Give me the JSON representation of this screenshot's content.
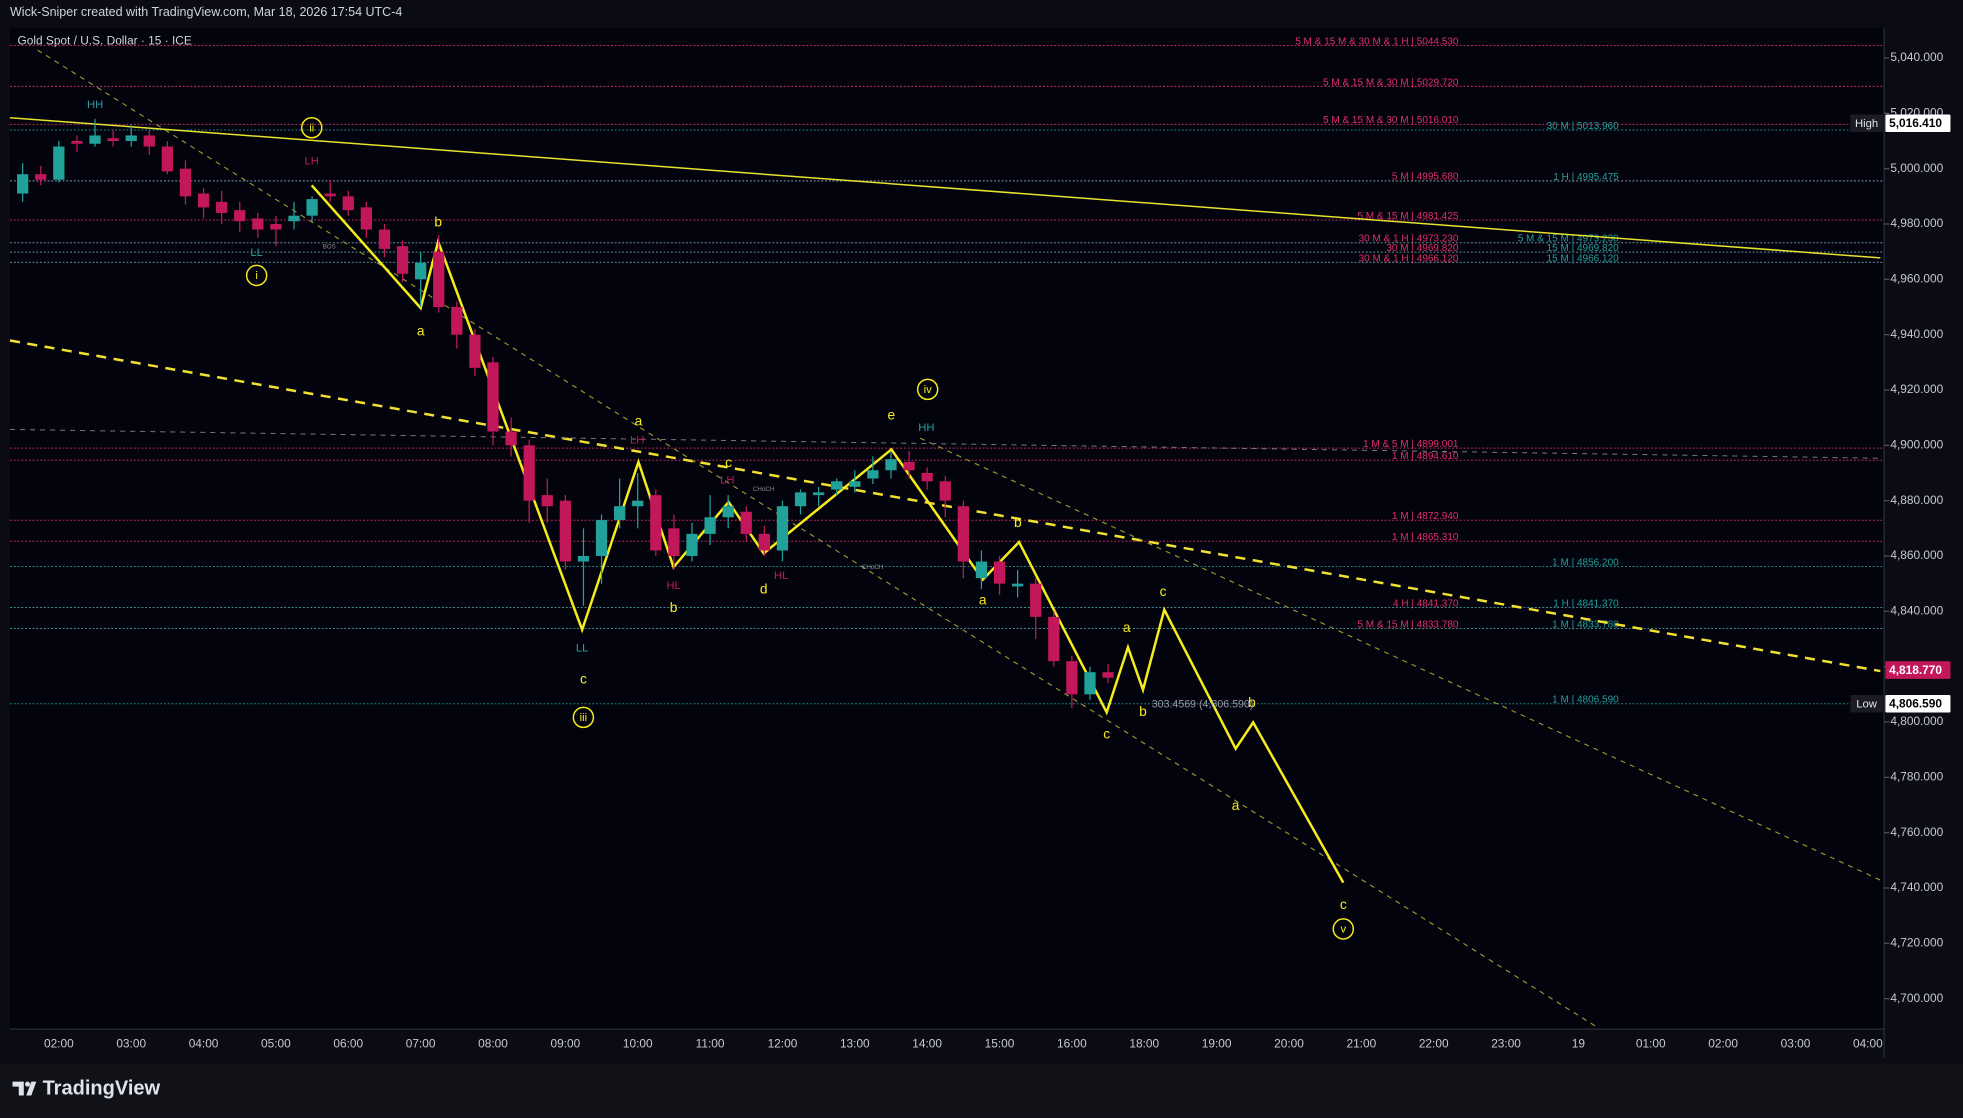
{
  "header": "Wick-Sniper created with TradingView.com, Mar 18, 2026 17:54 UTC-4",
  "footer": "TradingView",
  "chart_data": {
    "type": "candlestick",
    "title": "Gold Spot / U.S. Dollar · 15 · ICE",
    "up_color": "#22a09a",
    "down_color": "#c2185b",
    "ylim": [
      4689,
      5051
    ],
    "yticks": [
      {
        "value": 5040,
        "label": "5,040.000"
      },
      {
        "value": 5020,
        "label": "5,020.000"
      },
      {
        "value": 5000,
        "label": "5,000.000"
      },
      {
        "value": 4980,
        "label": "4,980.000"
      },
      {
        "value": 4960,
        "label": "4,960.000"
      },
      {
        "value": 4940,
        "label": "4,940.000"
      },
      {
        "value": 4920,
        "label": "4,920.000"
      },
      {
        "value": 4900,
        "label": "4,900.000"
      },
      {
        "value": 4880,
        "label": "4,880.000"
      },
      {
        "value": 4860,
        "label": "4,860.000"
      },
      {
        "value": 4840,
        "label": "4,840.000"
      },
      {
        "value": 4820,
        "label": "4,820.000"
      },
      {
        "value": 4800,
        "label": "4,800.000"
      },
      {
        "value": 4780,
        "label": "4,780.000"
      },
      {
        "value": 4760,
        "label": "4,760.000"
      },
      {
        "value": 4740,
        "label": "4,740.000"
      },
      {
        "value": 4720,
        "label": "4,720.000"
      },
      {
        "value": 4700,
        "label": "4,700.000"
      }
    ],
    "categories": [
      "02:00",
      "03:00",
      "04:00",
      "05:00",
      "06:00",
      "07:00",
      "08:00",
      "09:00",
      "10:00",
      "11:00",
      "12:00",
      "13:00",
      "14:00",
      "15:00",
      "16:00",
      "18:00",
      "19:00",
      "20:00",
      "21:00",
      "22:00",
      "23:00",
      "19",
      "01:00",
      "02:00",
      "03:00",
      "04:00"
    ],
    "open": [
      4991,
      4998,
      4996,
      5010,
      5009,
      5011,
      5010,
      5012,
      5008,
      5000,
      4991,
      4988,
      4985,
      4982,
      4980,
      4981,
      4983,
      4991,
      4990,
      4986,
      4978,
      4972,
      4960,
      4970,
      4950,
      4940,
      4930,
      4905,
      4900,
      4882,
      4880,
      4858,
      4860,
      4873,
      4878,
      4882,
      4870,
      4860,
      4868,
      4874,
      4876,
      4868,
      4862,
      4878,
      4882,
      4884,
      4885,
      4888,
      4891,
      4894,
      4890,
      4887,
      4878,
      4852,
      4858,
      4849,
      4850,
      4838,
      4822,
      4810,
      4818
    ],
    "high": [
      5002,
      5001,
      5010,
      5012,
      5018,
      5014,
      5016,
      5014,
      5010,
      5003,
      4993,
      4992,
      4988,
      4984,
      4983,
      4988,
      4990,
      4996,
      4992,
      4988,
      4980,
      4974,
      4970,
      4976,
      4952,
      4942,
      4932,
      4910,
      4902,
      4888,
      4882,
      4870,
      4875,
      4888,
      4890,
      4884,
      4875,
      4872,
      4882,
      4882,
      4878,
      4871,
      4880,
      4884,
      4885,
      4888,
      4891,
      4896,
      4898,
      4898,
      4892,
      4889,
      4880,
      4862,
      4860,
      4855,
      4852,
      4840,
      4824,
      4820,
      4821
    ],
    "low": [
      4988,
      4994,
      4995,
      5006,
      5008,
      5008,
      5008,
      5005,
      4998,
      4987,
      4982,
      4980,
      4977,
      4975,
      4972,
      4978,
      4981,
      4988,
      4983,
      4975,
      4968,
      4959,
      4950,
      4948,
      4935,
      4925,
      4900,
      4896,
      4872,
      4872,
      4855,
      4842,
      4850,
      4870,
      4870,
      4860,
      4855,
      4858,
      4864,
      4870,
      4865,
      4860,
      4858,
      4875,
      4878,
      4882,
      4883,
      4886,
      4888,
      4888,
      4884,
      4874,
      4852,
      4848,
      4846,
      4845,
      4830,
      4820,
      4805,
      4808,
      4814
    ],
    "close": [
      4998,
      4996,
      5008,
      5009,
      5012,
      5010,
      5012,
      5008,
      4999,
      4990,
      4986,
      4984,
      4981,
      4978,
      4978,
      4983,
      4989,
      4990,
      4985,
      4978,
      4971,
      4962,
      4966,
      4950,
      4940,
      4928,
      4905,
      4900,
      4880,
      4878,
      4858,
      4860,
      4873,
      4878,
      4880,
      4862,
      4860,
      4868,
      4874,
      4878,
      4868,
      4862,
      4878,
      4883,
      4883,
      4887,
      4887,
      4891,
      4895,
      4891,
      4887,
      4880,
      4858,
      4858,
      4850,
      4850,
      4838,
      4822,
      4810,
      4818,
      4816
    ],
    "badges": [
      {
        "name": "High",
        "value": 5016.41,
        "label": "5,016.410",
        "color": "#ffffff"
      },
      {
        "name": "Low",
        "value": 4806.59,
        "label": "4,806.590",
        "color": "#ffffff"
      },
      {
        "value": 4818.77,
        "label": "4,818.770",
        "color": "#c2185b"
      }
    ],
    "level_groups": [
      {
        "color": "#e0306a",
        "levels": [
          {
            "text": "5 M & 15 M & 30 M & 1 H | 5044.530",
            "value": 5044.53
          },
          {
            "text": "5 M & 15 M & 30 M | 5029.720",
            "value": 5029.72
          },
          {
            "text": "5 M & 15 M & 30 M | 5016.010",
            "value": 5016.01
          },
          {
            "text": "5 M | 4995.680",
            "value": 4995.68
          },
          {
            "text": "5 M & 15 M | 4981.425",
            "value": 4981.425
          },
          {
            "text": "30 M & 1 H | 4973.230",
            "value": 4973.23
          },
          {
            "text": "30 M | 4969.820",
            "value": 4969.82
          },
          {
            "text": "30 M & 1 H | 4966.120",
            "value": 4966.12
          },
          {
            "text": "1 M & 5 M | 4899.001",
            "value": 4899.001
          },
          {
            "text": "1 M | 4894.610",
            "value": 4894.61
          },
          {
            "text": "1 M | 4872.940",
            "value": 4872.94
          },
          {
            "text": "1 M | 4865.310",
            "value": 4865.31
          },
          {
            "text": "4 H | 4841.370",
            "value": 4841.37
          },
          {
            "text": "5 M & 15 M | 4833.780",
            "value": 4833.78
          }
        ]
      },
      {
        "color": "#22a09a",
        "levels": [
          {
            "text": "30 M | 5013.960",
            "value": 5013.96
          },
          {
            "text": "1 H | 4995.475",
            "value": 4995.475
          },
          {
            "text": "5 M & 15 M | 4973.230",
            "value": 4973.23
          },
          {
            "text": "15 M | 4969.820",
            "value": 4969.82
          },
          {
            "text": "15 M | 4966.120",
            "value": 4966.12
          },
          {
            "text": "1 M | 4856.200",
            "value": 4856.2
          },
          {
            "text": "1 H | 4841.370",
            "value": 4841.37
          },
          {
            "text": "1 M | 4833.780",
            "value": 4833.78
          },
          {
            "text": "1 M | 4806.590",
            "value": 4806.59
          }
        ]
      }
    ],
    "wave_labels": [
      "b",
      "a",
      "a",
      "c",
      "b",
      "c",
      "d",
      "e",
      "a",
      "b",
      "c",
      "a",
      "b",
      "c",
      "a",
      "b",
      "c"
    ],
    "wave_degree_labels": [
      "i",
      "ii",
      "iii",
      "iv",
      "v"
    ],
    "structure_labels": [
      "HH",
      "LH",
      "LL",
      "LH",
      "LH",
      "HL",
      "HL",
      "LL",
      "HH",
      "CHoCH",
      "CHoCH",
      "BOS"
    ],
    "measure_label": "303.4569 (4,806.590)"
  }
}
